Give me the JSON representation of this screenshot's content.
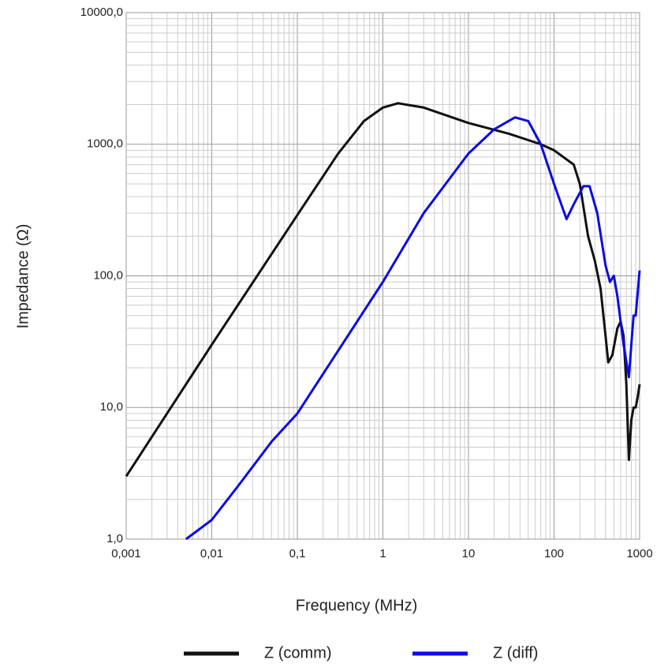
{
  "chart_data": {
    "type": "line",
    "xlabel": "Frequency (MHz)",
    "ylabel": "Impedance (Ω)",
    "xscale": "log",
    "yscale": "log",
    "grid": true,
    "minor_grid": true,
    "legend": "bottom",
    "xlim": [
      0.001,
      1000
    ],
    "xticks": [
      {
        "value": 0.001,
        "label": "0,001"
      },
      {
        "value": 0.01,
        "label": "0,01"
      },
      {
        "value": 0.1,
        "label": "0,1"
      },
      1,
      10,
      100,
      1000
    ],
    "ylim": [
      1,
      10000
    ],
    "yticks": [
      {
        "value": 1,
        "label": "1,0"
      },
      {
        "value": 10,
        "label": "10,0"
      },
      {
        "value": 100,
        "label": "100,0"
      },
      {
        "value": 1000,
        "label": "1000,0"
      },
      {
        "value": 10000,
        "label": "10000,0"
      }
    ],
    "series": [
      {
        "name": "Z (comm)",
        "color": "#111111",
        "x": [
          0.001,
          0.01,
          0.1,
          0.3,
          0.6,
          1,
          1.5,
          3,
          10,
          30,
          70,
          100,
          170,
          200,
          250,
          300,
          350,
          400,
          430,
          480,
          550,
          600,
          650,
          700,
          750,
          800,
          850,
          900,
          950,
          1000
        ],
        "values": [
          3,
          30,
          290,
          850,
          1500,
          1900,
          2050,
          1900,
          1450,
          1200,
          1000,
          900,
          700,
          500,
          200,
          130,
          80,
          35,
          22,
          25,
          40,
          45,
          35,
          15,
          4,
          8,
          10,
          10,
          12,
          15
        ]
      },
      {
        "name": "Z (diff)",
        "color": "#0a0ae6",
        "x": [
          0.005,
          0.01,
          0.02,
          0.05,
          0.1,
          0.3,
          1,
          3,
          10,
          20,
          35,
          50,
          70,
          100,
          140,
          170,
          220,
          260,
          320,
          400,
          450,
          500,
          550,
          650,
          750,
          800,
          850,
          900,
          1000
        ],
        "values": [
          1.0,
          1.4,
          2.5,
          5.5,
          9,
          27,
          90,
          300,
          850,
          1300,
          1600,
          1500,
          1000,
          500,
          270,
          350,
          480,
          480,
          300,
          120,
          90,
          100,
          70,
          30,
          17,
          30,
          50,
          50,
          110
        ]
      }
    ]
  }
}
